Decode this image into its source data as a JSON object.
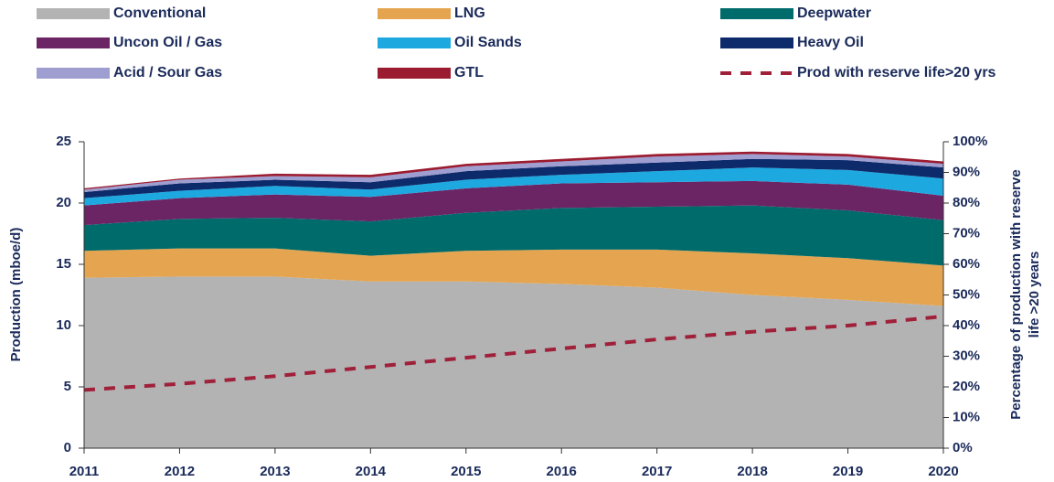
{
  "chart_data": {
    "type": "area",
    "stacked": true,
    "ylabel": "Production (mboe/d)",
    "y2label": [
      "Percentage of production with reserve",
      "life >20 years"
    ],
    "x": [
      2011,
      2012,
      2013,
      2014,
      2015,
      2016,
      2017,
      2018,
      2019,
      2020
    ],
    "xlim": [
      2011,
      2020
    ],
    "xticks": [
      2011,
      2012,
      2013,
      2014,
      2015,
      2016,
      2017,
      2018,
      2019,
      2020
    ],
    "ylim": [
      0,
      25
    ],
    "yticks": [
      0,
      5,
      10,
      15,
      20,
      25
    ],
    "y2lim": [
      0,
      100
    ],
    "y2ticks": [
      {
        "value": 0,
        "label": "0%"
      },
      {
        "value": 10,
        "label": "10%"
      },
      {
        "value": 20,
        "label": "20%"
      },
      {
        "value": 30,
        "label": "30%"
      },
      {
        "value": 40,
        "label": "40%"
      },
      {
        "value": 50,
        "label": "50%"
      },
      {
        "value": 60,
        "label": "60%"
      },
      {
        "value": 70,
        "label": "70%"
      },
      {
        "value": 80,
        "label": "80%"
      },
      {
        "value": 90,
        "label": "90%"
      },
      {
        "value": 100,
        "label": "100%"
      }
    ],
    "legend": "top",
    "series": [
      {
        "name": "Conventional",
        "color": "#b3b3b3",
        "values": [
          13.9,
          14.0,
          14.0,
          13.6,
          13.6,
          13.4,
          13.1,
          12.5,
          12.1,
          11.6
        ]
      },
      {
        "name": "LNG",
        "color": "#e5a550",
        "values": [
          2.2,
          2.3,
          2.3,
          2.1,
          2.5,
          2.8,
          3.1,
          3.4,
          3.4,
          3.3
        ]
      },
      {
        "name": "Deepwater",
        "color": "#006b6b",
        "values": [
          2.1,
          2.4,
          2.5,
          2.8,
          3.1,
          3.4,
          3.5,
          3.9,
          3.9,
          3.7
        ]
      },
      {
        "name": "Uncon Oil / Gas",
        "color": "#6b2565",
        "values": [
          1.6,
          1.7,
          1.9,
          2.0,
          2.0,
          2.0,
          2.0,
          2.0,
          2.1,
          2.0
        ]
      },
      {
        "name": "Oil Sands",
        "color": "#1ea8e0",
        "values": [
          0.6,
          0.6,
          0.7,
          0.6,
          0.7,
          0.7,
          0.9,
          1.1,
          1.2,
          1.4
        ]
      },
      {
        "name": "Heavy Oil",
        "color": "#0d2a6b",
        "values": [
          0.5,
          0.6,
          0.5,
          0.6,
          0.7,
          0.7,
          0.7,
          0.7,
          0.8,
          0.9
        ]
      },
      {
        "name": "Acid / Sour Gas",
        "color": "#9e9ed0",
        "values": [
          0.2,
          0.3,
          0.3,
          0.4,
          0.4,
          0.4,
          0.5,
          0.4,
          0.3,
          0.3
        ]
      },
      {
        "name": "GTL",
        "color": "#9b1b30",
        "values": [
          0.1,
          0.1,
          0.2,
          0.2,
          0.2,
          0.2,
          0.2,
          0.2,
          0.2,
          0.2
        ]
      },
      {
        "name": "Prod with reserve life>20 yrs",
        "color": "#a0203a",
        "axis": "y2",
        "style": "dashed",
        "values": [
          19,
          21,
          23.5,
          26.5,
          29.5,
          32.5,
          35.5,
          38,
          40,
          43
        ]
      }
    ]
  }
}
